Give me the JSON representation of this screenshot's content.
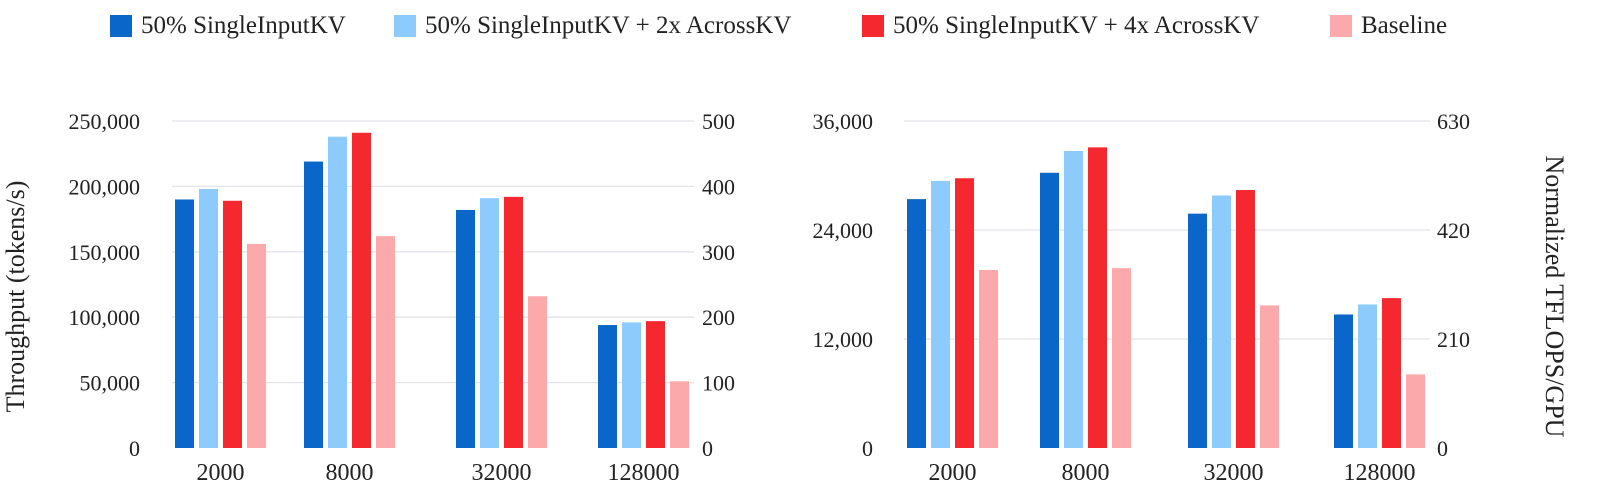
{
  "colors": {
    "50% SingleInputKV": "#0a66c9",
    "50% SingleInputKV + 2x AcrossKV": "#8ccbfb",
    "50% SingleInputKV + 4x AcrossKV": "#f5282f",
    "Baseline": "#fca9ab"
  },
  "legend": [
    "50% SingleInputKV",
    "50% SingleInputKV + 2x AcrossKV",
    "50% SingleInputKV + 4x AcrossKV",
    "Baseline"
  ],
  "chart_data": [
    {
      "type": "bar",
      "categories": [
        "2000",
        "8000",
        "32000",
        "128000"
      ],
      "ylabel": "Throughput (tokens/s)",
      "ylim": [
        0,
        250000
      ],
      "yticks": [
        "0",
        "50,000",
        "100,000",
        "150,000",
        "200,000",
        "250,000"
      ],
      "y2lim": [
        0,
        500
      ],
      "y2ticks": [
        "0",
        "100",
        "200",
        "300",
        "400",
        "500"
      ],
      "grid": true,
      "series": [
        {
          "name": "50% SingleInputKV",
          "values": [
            190000,
            219000,
            182000,
            94000
          ]
        },
        {
          "name": "50% SingleInputKV + 2x AcrossKV",
          "values": [
            198000,
            238000,
            191000,
            96000
          ]
        },
        {
          "name": "50% SingleInputKV + 4x AcrossKV",
          "values": [
            189000,
            241000,
            192000,
            97000
          ]
        },
        {
          "name": "Baseline",
          "values": [
            156000,
            162000,
            116000,
            51000
          ]
        }
      ]
    },
    {
      "type": "bar",
      "categories": [
        "2000",
        "8000",
        "32000",
        "128000"
      ],
      "ylabel": "Normalized TFLOPS/GPU",
      "ylim": [
        0,
        36000
      ],
      "yticks": [
        "0",
        "12,000",
        "24,000",
        "36,000"
      ],
      "y2lim": [
        0,
        630
      ],
      "y2ticks": [
        "0",
        "210",
        "420",
        "630"
      ],
      "grid": true,
      "series": [
        {
          "name": "50% SingleInputKV",
          "values": [
            27400,
            30300,
            25800,
            14700
          ]
        },
        {
          "name": "50% SingleInputKV + 2x AcrossKV",
          "values": [
            29400,
            32700,
            27800,
            15800
          ]
        },
        {
          "name": "50% SingleInputKV + 4x AcrossKV",
          "values": [
            29700,
            33100,
            28400,
            16500
          ]
        },
        {
          "name": "Baseline",
          "values": [
            19600,
            19800,
            15700,
            8100
          ]
        }
      ]
    }
  ]
}
